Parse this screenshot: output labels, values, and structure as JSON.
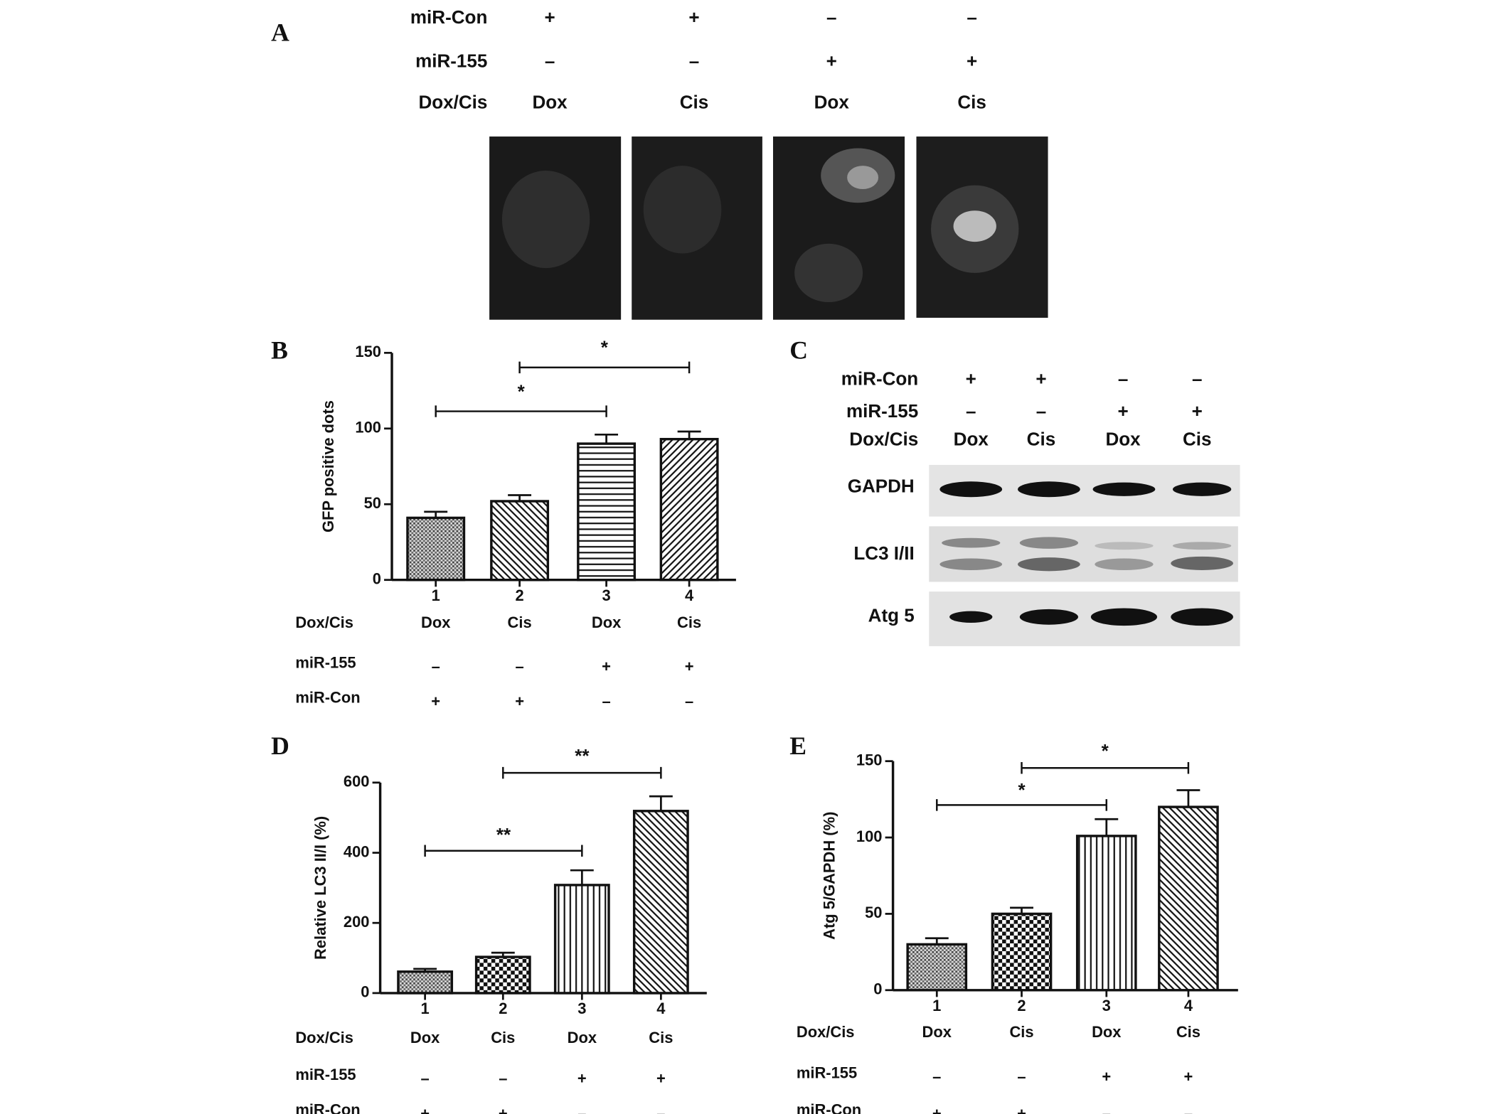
{
  "panel_a": {
    "label": "A",
    "rows": [
      {
        "label": "miR-Con",
        "values": [
          "+",
          "+",
          "–",
          "–"
        ]
      },
      {
        "label": "miR-155",
        "values": [
          "–",
          "–",
          "+",
          "+"
        ]
      },
      {
        "label": "Dox/Cis",
        "values": [
          "Dox",
          "Cis",
          "Dox",
          "Cis"
        ]
      }
    ]
  },
  "panel_c": {
    "label": "C",
    "rows": [
      {
        "label": "miR-Con",
        "values": [
          "+",
          "+",
          "–",
          "–"
        ]
      },
      {
        "label": "miR-155",
        "values": [
          "–",
          "–",
          "+",
          "+"
        ]
      },
      {
        "label": "Dox/Cis",
        "values": [
          "Dox",
          "Cis",
          "Dox",
          "Cis"
        ]
      }
    ],
    "blots": [
      "GAPDH",
      "LC3 I/II",
      "Atg 5"
    ]
  },
  "chart_data": [
    {
      "type": "bar",
      "panel": "B",
      "y_label": "GFP positive dots",
      "categories": [
        "1",
        "2",
        "3",
        "4"
      ],
      "values": [
        41,
        52,
        90,
        93
      ],
      "errors": [
        4,
        4,
        6,
        5
      ],
      "patterns": [
        "dots",
        "diag-down",
        "horizontal",
        "diag-up"
      ],
      "color": "#111111",
      "ylim": [
        0,
        150
      ],
      "yticks": [
        0,
        50,
        100,
        150
      ],
      "annotations": [
        "*",
        "*"
      ],
      "conditions": [
        {
          "label": "Dox/Cis",
          "values": [
            "Dox",
            "Cis",
            "Dox",
            "Cis"
          ]
        },
        {
          "label": "miR-155",
          "values": [
            "–",
            "–",
            "+",
            "+"
          ]
        },
        {
          "label": "miR-Con",
          "values": [
            "+",
            "+",
            "–",
            "–"
          ]
        }
      ]
    },
    {
      "type": "bar",
      "panel": "D",
      "y_label": "Relative LC3 II/I (%)",
      "categories": [
        "1",
        "2",
        "3",
        "4"
      ],
      "values": [
        61,
        103,
        308,
        519
      ],
      "errors": [
        8,
        12,
        42,
        42
      ],
      "patterns": [
        "dots",
        "checker",
        "vertical",
        "diag-down"
      ],
      "color": "#111111",
      "ylim": [
        0,
        600
      ],
      "yticks": [
        0,
        200,
        400,
        600
      ],
      "annotations": [
        "**",
        "**"
      ],
      "conditions": [
        {
          "label": "Dox/Cis",
          "values": [
            "Dox",
            "Cis",
            "Dox",
            "Cis"
          ]
        },
        {
          "label": "miR-155",
          "values": [
            "–",
            "–",
            "+",
            "+"
          ]
        },
        {
          "label": "miR-Con",
          "values": [
            "+",
            "+",
            "–",
            "–"
          ]
        }
      ]
    },
    {
      "type": "bar",
      "panel": "E",
      "y_label": "Atg 5/GAPDH (%)",
      "categories": [
        "1",
        "2",
        "3",
        "4"
      ],
      "values": [
        30,
        50,
        101,
        120
      ],
      "errors": [
        4,
        4,
        11,
        11
      ],
      "patterns": [
        "dots",
        "checker",
        "vertical",
        "diag-down"
      ],
      "color": "#111111",
      "ylim": [
        0,
        150
      ],
      "yticks": [
        0,
        50,
        100,
        150
      ],
      "annotations": [
        "*",
        "*"
      ],
      "conditions": [
        {
          "label": "Dox/Cis",
          "values": [
            "Dox",
            "Cis",
            "Dox",
            "Cis"
          ]
        },
        {
          "label": "miR-155",
          "values": [
            "–",
            "–",
            "+",
            "+"
          ]
        },
        {
          "label": "miR-Con",
          "values": [
            "+",
            "+",
            "–",
            "–"
          ]
        }
      ]
    }
  ]
}
